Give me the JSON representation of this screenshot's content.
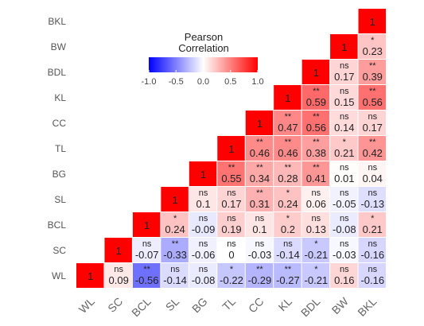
{
  "chart_data": {
    "type": "heatmap",
    "title": "",
    "legend": {
      "title_line1": "Pearson",
      "title_line2": "Correlation",
      "ticks": [
        "-1.0",
        "-0.5",
        "0.0",
        "0.5",
        "1.0"
      ],
      "range": [
        -1,
        1
      ],
      "colors": {
        "low": "#0000ff",
        "mid": "#ffffff",
        "high": "#ff0000"
      },
      "placement": "top-left"
    },
    "x_labels": [
      "WL",
      "SC",
      "BCL",
      "SL",
      "BG",
      "TL",
      "CC",
      "KL",
      "BDL",
      "BW",
      "BKL"
    ],
    "y_labels": [
      "WL",
      "SC",
      "BCL",
      "SL",
      "BG",
      "TL",
      "CC",
      "KL",
      "BDL",
      "BW",
      "BKL"
    ],
    "cells": [
      {
        "row": "WL",
        "col": "WL",
        "value": 1,
        "label": "1",
        "sig": ""
      },
      {
        "row": "WL",
        "col": "SC",
        "value": 0.09,
        "label": "0.09",
        "sig": "ns"
      },
      {
        "row": "WL",
        "col": "BCL",
        "value": -0.56,
        "label": "-0.56",
        "sig": "**"
      },
      {
        "row": "WL",
        "col": "SL",
        "value": -0.14,
        "label": "-0.14",
        "sig": "ns"
      },
      {
        "row": "WL",
        "col": "BG",
        "value": -0.08,
        "label": "-0.08",
        "sig": "ns"
      },
      {
        "row": "WL",
        "col": "TL",
        "value": -0.22,
        "label": "-0.22",
        "sig": "*"
      },
      {
        "row": "WL",
        "col": "CC",
        "value": -0.29,
        "label": "-0.29",
        "sig": "**"
      },
      {
        "row": "WL",
        "col": "KL",
        "value": -0.27,
        "label": "-0.27",
        "sig": "**"
      },
      {
        "row": "WL",
        "col": "BDL",
        "value": -0.21,
        "label": "-0.21",
        "sig": "*"
      },
      {
        "row": "WL",
        "col": "BW",
        "value": 0.16,
        "label": "0.16",
        "sig": "ns"
      },
      {
        "row": "WL",
        "col": "BKL",
        "value": -0.16,
        "label": "-0.16",
        "sig": "ns"
      },
      {
        "row": "SC",
        "col": "SC",
        "value": 1,
        "label": "1",
        "sig": ""
      },
      {
        "row": "SC",
        "col": "BCL",
        "value": -0.07,
        "label": "-0.07",
        "sig": "ns"
      },
      {
        "row": "SC",
        "col": "SL",
        "value": -0.33,
        "label": "-0.33",
        "sig": "**"
      },
      {
        "row": "SC",
        "col": "BG",
        "value": -0.06,
        "label": "-0.06",
        "sig": "ns"
      },
      {
        "row": "SC",
        "col": "TL",
        "value": 0,
        "label": "0",
        "sig": "ns"
      },
      {
        "row": "SC",
        "col": "CC",
        "value": -0.03,
        "label": "-0.03",
        "sig": "ns"
      },
      {
        "row": "SC",
        "col": "KL",
        "value": -0.14,
        "label": "-0.14",
        "sig": "ns"
      },
      {
        "row": "SC",
        "col": "BDL",
        "value": -0.21,
        "label": "-0.21",
        "sig": "*"
      },
      {
        "row": "SC",
        "col": "BW",
        "value": -0.03,
        "label": "-0.03",
        "sig": "ns"
      },
      {
        "row": "SC",
        "col": "BKL",
        "value": -0.16,
        "label": "-0.16",
        "sig": "ns"
      },
      {
        "row": "BCL",
        "col": "BCL",
        "value": 1,
        "label": "1",
        "sig": ""
      },
      {
        "row": "BCL",
        "col": "SL",
        "value": 0.24,
        "label": "0.24",
        "sig": "*"
      },
      {
        "row": "BCL",
        "col": "BG",
        "value": -0.09,
        "label": "-0.09",
        "sig": "ns"
      },
      {
        "row": "BCL",
        "col": "TL",
        "value": 0.19,
        "label": "0.19",
        "sig": "ns"
      },
      {
        "row": "BCL",
        "col": "CC",
        "value": 0.1,
        "label": "0.1",
        "sig": "ns"
      },
      {
        "row": "BCL",
        "col": "KL",
        "value": 0.2,
        "label": "0.2",
        "sig": "*"
      },
      {
        "row": "BCL",
        "col": "BDL",
        "value": 0.13,
        "label": "0.13",
        "sig": "ns"
      },
      {
        "row": "BCL",
        "col": "BW",
        "value": -0.08,
        "label": "-0.08",
        "sig": "ns"
      },
      {
        "row": "BCL",
        "col": "BKL",
        "value": 0.21,
        "label": "0.21",
        "sig": "*"
      },
      {
        "row": "SL",
        "col": "SL",
        "value": 1,
        "label": "1",
        "sig": ""
      },
      {
        "row": "SL",
        "col": "BG",
        "value": 0.1,
        "label": "0.1",
        "sig": "ns"
      },
      {
        "row": "SL",
        "col": "TL",
        "value": 0.17,
        "label": "0.17",
        "sig": "ns"
      },
      {
        "row": "SL",
        "col": "CC",
        "value": 0.31,
        "label": "0.31",
        "sig": "**"
      },
      {
        "row": "SL",
        "col": "KL",
        "value": 0.24,
        "label": "0.24",
        "sig": "*"
      },
      {
        "row": "SL",
        "col": "BDL",
        "value": 0.06,
        "label": "0.06",
        "sig": "ns"
      },
      {
        "row": "SL",
        "col": "BW",
        "value": -0.05,
        "label": "-0.05",
        "sig": "ns"
      },
      {
        "row": "SL",
        "col": "BKL",
        "value": -0.13,
        "label": "-0.13",
        "sig": "ns"
      },
      {
        "row": "BG",
        "col": "BG",
        "value": 1,
        "label": "1",
        "sig": ""
      },
      {
        "row": "BG",
        "col": "TL",
        "value": 0.55,
        "label": "0.55",
        "sig": "**"
      },
      {
        "row": "BG",
        "col": "CC",
        "value": 0.34,
        "label": "0.34",
        "sig": "**"
      },
      {
        "row": "BG",
        "col": "KL",
        "value": 0.28,
        "label": "0.28",
        "sig": "**"
      },
      {
        "row": "BG",
        "col": "BDL",
        "value": 0.41,
        "label": "0.41",
        "sig": "**"
      },
      {
        "row": "BG",
        "col": "BW",
        "value": 0.01,
        "label": "0.01",
        "sig": "ns"
      },
      {
        "row": "BG",
        "col": "BKL",
        "value": 0.04,
        "label": "0.04",
        "sig": "ns"
      },
      {
        "row": "TL",
        "col": "TL",
        "value": 1,
        "label": "1",
        "sig": ""
      },
      {
        "row": "TL",
        "col": "CC",
        "value": 0.46,
        "label": "0.46",
        "sig": "**"
      },
      {
        "row": "TL",
        "col": "KL",
        "value": 0.46,
        "label": "0.46",
        "sig": "**"
      },
      {
        "row": "TL",
        "col": "BDL",
        "value": 0.38,
        "label": "0.38",
        "sig": "**"
      },
      {
        "row": "TL",
        "col": "BW",
        "value": 0.21,
        "label": "0.21",
        "sig": "*"
      },
      {
        "row": "TL",
        "col": "BKL",
        "value": 0.42,
        "label": "0.42",
        "sig": "**"
      },
      {
        "row": "CC",
        "col": "CC",
        "value": 1,
        "label": "1",
        "sig": ""
      },
      {
        "row": "CC",
        "col": "KL",
        "value": 0.47,
        "label": "0.47",
        "sig": "**"
      },
      {
        "row": "CC",
        "col": "BDL",
        "value": 0.56,
        "label": "0.56",
        "sig": "**"
      },
      {
        "row": "CC",
        "col": "BW",
        "value": 0.14,
        "label": "0.14",
        "sig": "ns"
      },
      {
        "row": "CC",
        "col": "BKL",
        "value": 0.17,
        "label": "0.17",
        "sig": "ns"
      },
      {
        "row": "KL",
        "col": "KL",
        "value": 1,
        "label": "1",
        "sig": ""
      },
      {
        "row": "KL",
        "col": "BDL",
        "value": 0.59,
        "label": "0.59",
        "sig": "**"
      },
      {
        "row": "KL",
        "col": "BW",
        "value": 0.15,
        "label": "0.15",
        "sig": "ns"
      },
      {
        "row": "KL",
        "col": "BKL",
        "value": 0.56,
        "label": "0.56",
        "sig": "**"
      },
      {
        "row": "BDL",
        "col": "BDL",
        "value": 1,
        "label": "1",
        "sig": ""
      },
      {
        "row": "BDL",
        "col": "BW",
        "value": 0.17,
        "label": "0.17",
        "sig": "ns"
      },
      {
        "row": "BDL",
        "col": "BKL",
        "value": 0.39,
        "label": "0.39",
        "sig": "**"
      },
      {
        "row": "BW",
        "col": "BW",
        "value": 1,
        "label": "1",
        "sig": ""
      },
      {
        "row": "BW",
        "col": "BKL",
        "value": 0.23,
        "label": "0.23",
        "sig": "*"
      },
      {
        "row": "BKL",
        "col": "BKL",
        "value": 1,
        "label": "1",
        "sig": ""
      }
    ]
  }
}
